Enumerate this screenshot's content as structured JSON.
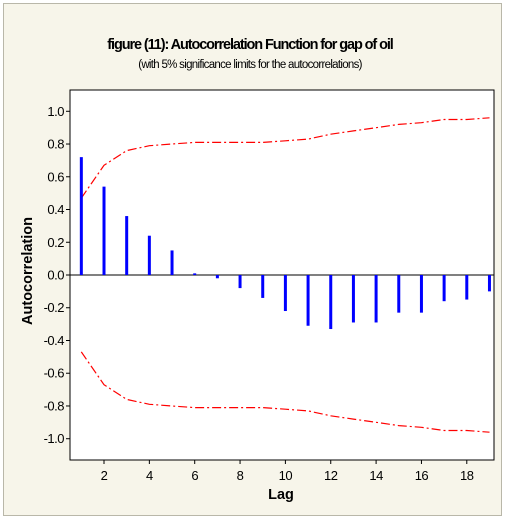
{
  "chart_data": {
    "type": "bar",
    "title": "figure (11): Autocorrelation Function for gap of oil",
    "subtitle": "(with 5% significance limits for the autocorrelations)",
    "xlabel": "Lag",
    "ylabel": "Autocorrelation",
    "xlim": [
      0.5,
      19.2
    ],
    "ylim": [
      -1.13,
      1.13
    ],
    "x_ticks": [
      2,
      4,
      6,
      8,
      10,
      12,
      14,
      16,
      18
    ],
    "y_ticks": [
      1.0,
      0.8,
      0.6,
      0.4,
      0.2,
      0.0,
      -0.2,
      -0.4,
      -0.6,
      -0.8,
      -1.0
    ],
    "y_tick_labels": [
      "1.0",
      "0.8",
      "0.6",
      "0.4",
      "0.2",
      "0.0",
      "-0.2",
      "-0.4",
      "-0.6",
      "-0.8",
      "-1.0"
    ],
    "lags": [
      1,
      2,
      3,
      4,
      5,
      6,
      7,
      8,
      9,
      10,
      11,
      12,
      13,
      14,
      15,
      16,
      17,
      18,
      19
    ],
    "acf": [
      0.72,
      0.54,
      0.36,
      0.24,
      0.15,
      0.01,
      -0.02,
      -0.08,
      -0.14,
      -0.22,
      -0.31,
      -0.33,
      -0.29,
      -0.29,
      -0.23,
      -0.23,
      -0.16,
      -0.15,
      -0.1
    ],
    "upper_limit": [
      0.47,
      0.67,
      0.76,
      0.79,
      0.8,
      0.81,
      0.81,
      0.81,
      0.81,
      0.82,
      0.83,
      0.86,
      0.88,
      0.9,
      0.92,
      0.93,
      0.95,
      0.95,
      0.96
    ],
    "grid": false,
    "colors": {
      "bars": "#0000ff",
      "limits": "#ff0000",
      "background": "#f7f5ea",
      "frame": "#000000"
    }
  }
}
